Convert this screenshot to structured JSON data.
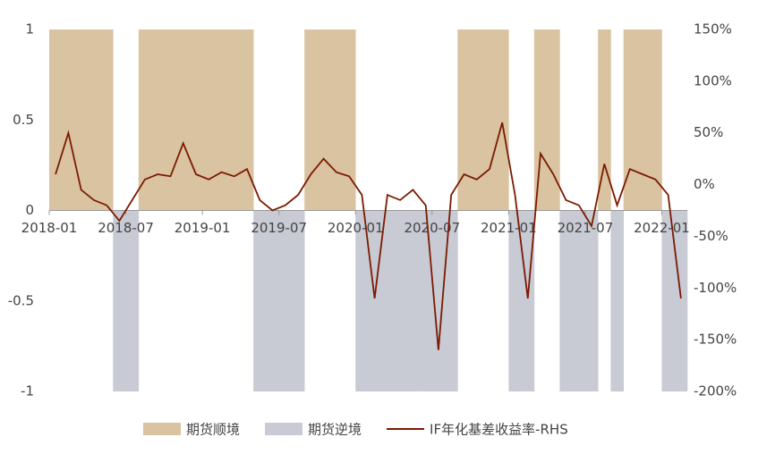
{
  "chart_data": {
    "type": "combo",
    "categories": [
      "2018-01",
      null,
      null,
      null,
      null,
      null,
      "2018-07",
      null,
      null,
      null,
      null,
      null,
      "2019-01",
      null,
      null,
      null,
      null,
      null,
      "2019-07",
      null,
      null,
      null,
      null,
      null,
      "2020-01",
      null,
      null,
      null,
      null,
      null,
      "2020-07",
      null,
      null,
      null,
      null,
      null,
      "2021-01",
      null,
      null,
      null,
      null,
      null,
      "2021-07",
      null,
      null,
      null,
      null,
      null,
      "2022-01",
      null
    ],
    "series": [
      {
        "name": "期货顺境",
        "type": "bar",
        "color": "#d9c3a0",
        "values": [
          1,
          1,
          1,
          1,
          1,
          null,
          null,
          1,
          1,
          1,
          1,
          1,
          1,
          1,
          1,
          1,
          null,
          null,
          null,
          null,
          1,
          1,
          1,
          1,
          null,
          null,
          null,
          null,
          null,
          null,
          null,
          null,
          1,
          1,
          1,
          1,
          null,
          null,
          1,
          1,
          null,
          null,
          null,
          1,
          null,
          1,
          1,
          1,
          null,
          null
        ]
      },
      {
        "name": "期货逆境",
        "type": "bar",
        "color": "#c8cad4",
        "values": [
          null,
          null,
          null,
          null,
          null,
          -1,
          -1,
          null,
          null,
          null,
          null,
          null,
          null,
          null,
          null,
          null,
          -1,
          -1,
          -1,
          -1,
          null,
          null,
          null,
          null,
          -1,
          -1,
          -1,
          -1,
          -1,
          -1,
          -1,
          -1,
          null,
          null,
          null,
          null,
          -1,
          -1,
          null,
          null,
          -1,
          -1,
          -1,
          null,
          -1,
          null,
          null,
          null,
          -1,
          -1
        ]
      },
      {
        "name": "IF年化基差收益率-RHS",
        "type": "line",
        "axis": "y2",
        "color": "#7b1a00",
        "values": [
          10,
          50,
          -5,
          -15,
          -20,
          -35,
          -15,
          5,
          10,
          8,
          40,
          10,
          5,
          12,
          8,
          15,
          -15,
          -25,
          -20,
          -10,
          10,
          25,
          12,
          8,
          -10,
          -110,
          -10,
          -15,
          -5,
          -20,
          -160,
          -10,
          10,
          5,
          15,
          60,
          -10,
          -110,
          30,
          10,
          -15,
          -20,
          -40,
          20,
          -20,
          15,
          10,
          5,
          -10,
          -110
        ]
      }
    ],
    "ylim": [
      -1,
      1
    ],
    "yticks": [
      1,
      0.5,
      0,
      -0.5,
      -1
    ],
    "y2lim": [
      -200,
      150
    ],
    "y2ticks": [
      {
        "value": 150,
        "label": "150%"
      },
      {
        "value": 100,
        "label": "100%"
      },
      {
        "value": 50,
        "label": "50%"
      },
      {
        "value": 0,
        "label": "0%"
      },
      {
        "value": -50,
        "label": "-50%"
      },
      {
        "value": -100,
        "label": "-100%"
      },
      {
        "value": -150,
        "label": "-150%"
      },
      {
        "value": -200,
        "label": "-200%"
      }
    ]
  }
}
